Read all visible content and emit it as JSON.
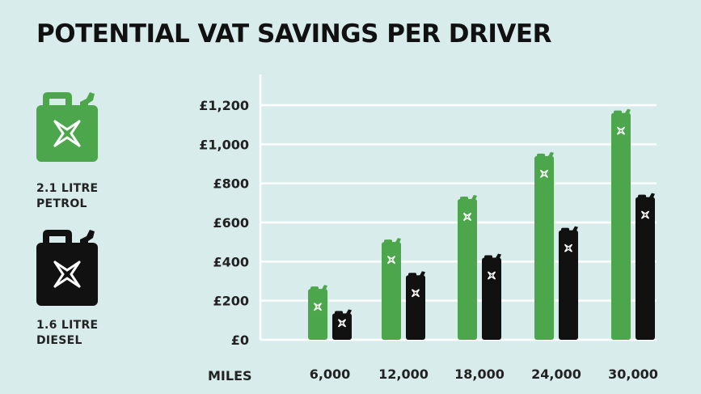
{
  "title": "POTENTIAL VAT SAVINGS PER DRIVER",
  "legend": [
    {
      "line1": "2.1 LITRE",
      "line2": "PETROL",
      "color": "#4ca64c",
      "icon": "jerry-can-icon"
    },
    {
      "line1": "1.6 LITRE",
      "line2": "DIESEL",
      "color": "#111111",
      "icon": "jerry-can-icon"
    }
  ],
  "chart_data": {
    "type": "bar",
    "xlabel": "MILES",
    "categories": [
      "6,000",
      "12,000",
      "18,000",
      "24,000",
      "30,000"
    ],
    "series": [
      {
        "name": "2.1 LITRE PETROL",
        "color": "#4ca64c",
        "values": [
          260,
          500,
          720,
          940,
          1160
        ]
      },
      {
        "name": "1.6 LITRE DIESEL",
        "color": "#111111",
        "values": [
          135,
          330,
          420,
          560,
          730
        ]
      }
    ],
    "ylim": [
      0,
      1200
    ],
    "yticks": [
      0,
      200,
      400,
      600,
      800,
      1000,
      1200
    ],
    "ytick_labels": [
      "£0",
      "£200",
      "£400",
      "£600",
      "£800",
      "£1,000",
      "£1,200"
    ],
    "grid": true
  }
}
